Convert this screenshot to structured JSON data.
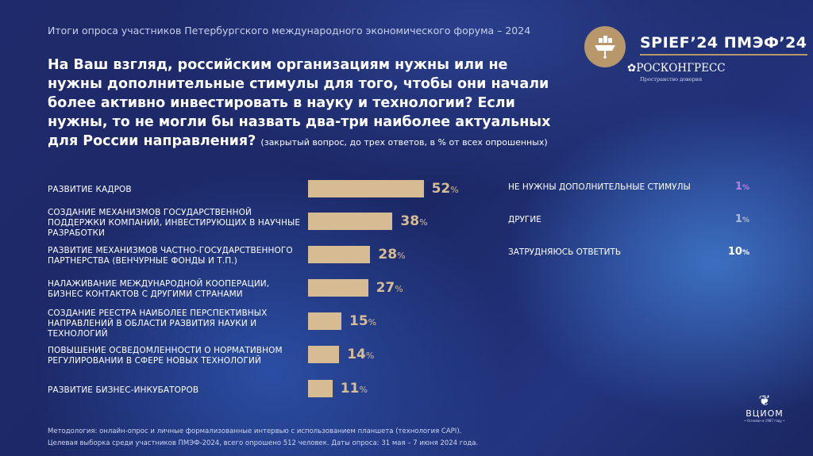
{
  "header": {
    "subtitle": "Итоги опроса участников Петербургского международного экономического форума – 2024",
    "logo_text": "SPIEF’24  ПМЭФ’24",
    "roscongress": "РОСКОНГРЕСС",
    "roscongress_tagline": "Пространство доверия"
  },
  "question": {
    "text": "На Ваш взгляд, российским организациям нужны или не нужны дополнительные стимулы для того, чтобы они начали более активно инвестировать в науку и технологии? Если нужны, то не могли бы назвать два-три наиболее актуальных для России направления?",
    "note": "(закрытый вопрос, до трех ответов, в % от всех опрошенных)"
  },
  "chart_data": {
    "type": "bar",
    "orientation": "horizontal",
    "unit": "%",
    "categories": [
      "РАЗВИТИЕ КАДРОВ",
      "СОЗДАНИЕ МЕХАНИЗМОВ ГОСУДАРСТВЕННОЙ ПОДДЕРЖКИ КОМПАНИЙ, ИНВЕСТИРУЮЩИХ В НАУЧНЫЕ РАЗРАБОТКИ",
      "РАЗВИТИЕ МЕХАНИЗМОВ ЧАСТНО-ГОСУДАРСТВЕННОГО ПАРТНЕРСТВА (ВЕНЧУРНЫЕ ФОНДЫ И Т.П.)",
      "НАЛАЖИВАНИЕ МЕЖДУНАРОДНОЙ КООПЕРАЦИИ, БИЗНЕС КОНТАКТОВ С ДРУГИМИ СТРАНАМИ",
      "СОЗДАНИЕ РЕЕСТРА НАИБОЛЕЕ ПЕРСПЕКТИВНЫХ НАПРАВЛЕНИЙ В ОБЛАСТИ РАЗВИТИЯ НАУКИ И ТЕХНОЛОГИЙ",
      "ПОВЫШЕНИЕ ОСВЕДОМЛЕННОСТИ О НОРМАТИВНОМ РЕГУЛИРОВАНИИ В СФЕРЕ НОВЫХ ТЕХНОЛОГИЙ",
      "РАЗВИТИЕ БИЗНЕС-ИНКУБАТОРОВ"
    ],
    "values": [
      52,
      38,
      28,
      27,
      15,
      14,
      11
    ],
    "bar_color": "#d7bc93",
    "other_answers": [
      {
        "label": "НЕ НУЖНЫ ДОПОЛНИТЕЛЬНЫЕ СТИМУЛЫ",
        "value": 1,
        "color": "#b77fe0"
      },
      {
        "label": "ДРУГИЕ",
        "value": 1,
        "color": "#b8bccb"
      },
      {
        "label": "ЗАТРУДНЯЮСЬ ОТВЕТИТЬ",
        "value": 10,
        "color": "#ffffff"
      }
    ]
  },
  "footer": {
    "line1": "Методология: онлайн-опрос и личные формализованные интервью с использованием планшета (технология CAPI).",
    "line2": "Целевая выборка среди участников ПМЭФ-2024, всего опрошено 512 человек. Даты опроса: 31 мая – 7 июня 2024 года.",
    "vciom": "ВЦИОМ",
    "vciom_tagline": "• Основан в 1987 году •"
  }
}
